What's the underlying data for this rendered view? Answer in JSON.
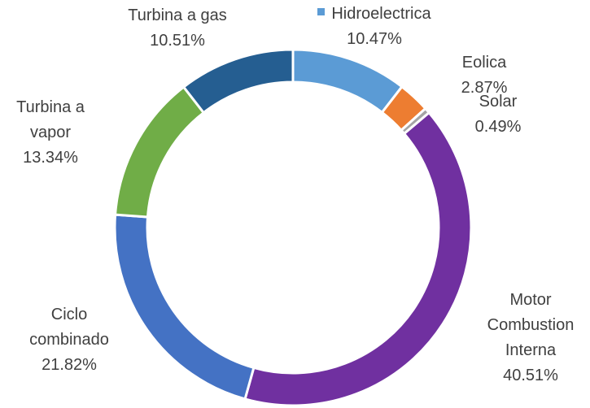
{
  "chart_data": {
    "type": "donut",
    "categories": [
      "Hidroelectrica",
      "Eolica",
      "Solar",
      "Motor Combustion Interna",
      "Ciclo combinado",
      "Turbina a vapor",
      "Turbina a gas"
    ],
    "values": [
      10.47,
      2.87,
      0.49,
      40.51,
      21.82,
      13.34,
      10.51
    ],
    "value_labels": [
      "10.47%",
      "2.87%",
      "0.49%",
      "40.51%",
      "21.82%",
      "13.34%",
      "10.51%"
    ],
    "colors": [
      "#5b9bd5",
      "#ed7d31",
      "#a5a5a5",
      "#7030a0",
      "#4472c4",
      "#70ad47",
      "#255e91"
    ]
  }
}
